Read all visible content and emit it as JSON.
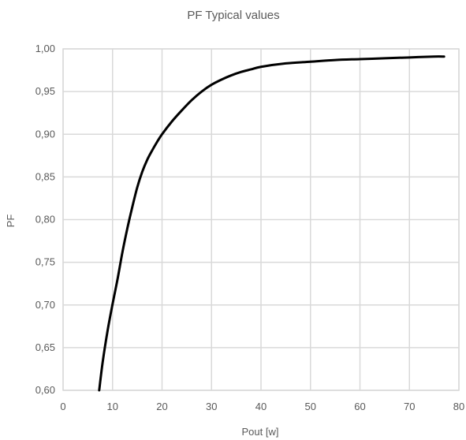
{
  "chart_data": {
    "type": "line",
    "title": "PF Typical values",
    "xlabel": "Pout [w]",
    "ylabel": "PF",
    "xlim": [
      0,
      80
    ],
    "ylim": [
      0.6,
      1.0
    ],
    "x_ticks": [
      0,
      10,
      20,
      30,
      40,
      50,
      60,
      70,
      80
    ],
    "y_ticks": [
      0.6,
      0.65,
      0.7,
      0.75,
      0.8,
      0.85,
      0.9,
      0.95,
      1.0
    ],
    "y_tick_labels": [
      "0,60",
      "0,65",
      "0,70",
      "0,75",
      "0,80",
      "0,85",
      "0,90",
      "0,95",
      "1,00"
    ],
    "grid": true,
    "legend": "none",
    "series": [
      {
        "color": "#000000",
        "x": [
          7.3,
          8,
          9,
          10,
          11,
          12,
          13,
          14,
          15,
          16,
          17,
          18,
          19,
          20,
          22,
          24,
          26,
          28,
          30,
          32,
          34,
          36,
          38,
          40,
          45,
          50,
          55,
          60,
          65,
          70,
          75,
          77
        ],
        "y": [
          0.6,
          0.633,
          0.67,
          0.701,
          0.73,
          0.762,
          0.79,
          0.815,
          0.838,
          0.856,
          0.87,
          0.881,
          0.891,
          0.9,
          0.915,
          0.928,
          0.94,
          0.95,
          0.958,
          0.964,
          0.969,
          0.973,
          0.976,
          0.979,
          0.983,
          0.985,
          0.987,
          0.988,
          0.989,
          0.99,
          0.991,
          0.991
        ]
      }
    ]
  }
}
